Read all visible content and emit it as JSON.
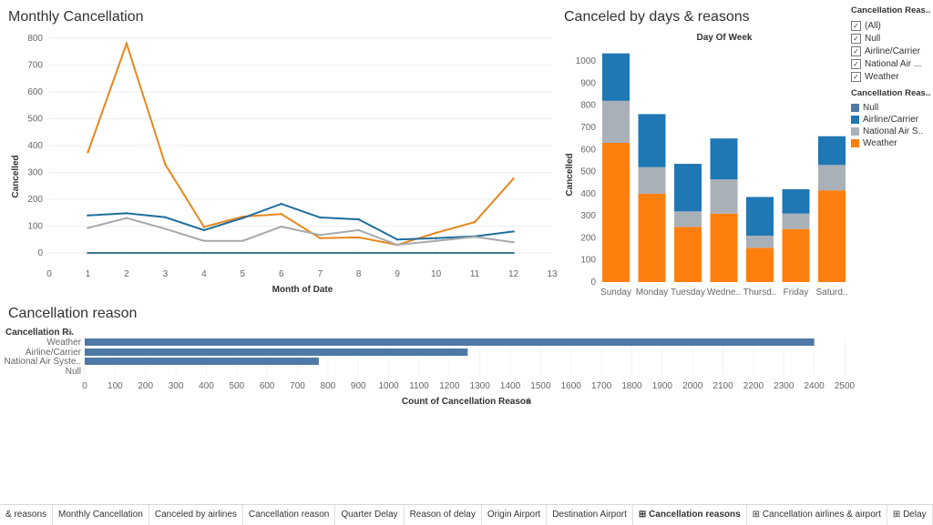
{
  "line_chart": {
    "title": "Monthly Cancellation",
    "ylabel": "Cancelled",
    "xlabel": "Month of Date",
    "y_ticks": [
      "0",
      "100",
      "200",
      "300",
      "400",
      "500",
      "600",
      "700",
      "800"
    ],
    "x_ticks": [
      "0",
      "1",
      "2",
      "3",
      "4",
      "5",
      "6",
      "7",
      "8",
      "9",
      "10",
      "11",
      "12",
      "13"
    ]
  },
  "stacked_chart": {
    "title": "Canceled by days & reasons",
    "header": "Day Of Week",
    "ylabel": "Cancelled",
    "y_ticks": [
      "0",
      "100",
      "200",
      "300",
      "400",
      "500",
      "600",
      "700",
      "800",
      "900",
      "1000"
    ],
    "days": [
      "Sunday",
      "Monday",
      "Tuesday",
      "Wedne..",
      "Thursd..",
      "Friday",
      "Saturd.."
    ]
  },
  "filter": {
    "title": "Cancellation Reas..",
    "items": [
      "(All)",
      "Null",
      "Airline/Carrier",
      "National Air ...",
      "Weather"
    ]
  },
  "legend": {
    "title": "Cancellation Reas..",
    "items": [
      {
        "label": "Null",
        "color": "#4e79a7"
      },
      {
        "label": "Airline/Carrier",
        "color": "#1f77b4"
      },
      {
        "label": "National Air S..",
        "color": "#aab0b8"
      },
      {
        "label": "Weather",
        "color": "#ff7f0e"
      }
    ]
  },
  "bar_chart": {
    "title": "Cancellation reason",
    "row_header": "Cancellation R..",
    "xlabel": "Count of Cancellation Reason",
    "x_ticks": [
      "0",
      "100",
      "200",
      "300",
      "400",
      "500",
      "600",
      "700",
      "800",
      "900",
      "1000",
      "1100",
      "1200",
      "1300",
      "1400",
      "1500",
      "1600",
      "1700",
      "1800",
      "1900",
      "2000",
      "2100",
      "2200",
      "2300",
      "2400",
      "2500"
    ]
  },
  "tabs": [
    {
      "label": "& reasons",
      "active": false
    },
    {
      "label": "Monthly Cancellation",
      "active": false
    },
    {
      "label": "Canceled by airlines",
      "active": false
    },
    {
      "label": "Cancellation reason",
      "active": false
    },
    {
      "label": "Quarter Delay",
      "active": false
    },
    {
      "label": "Reason of delay",
      "active": false
    },
    {
      "label": "Origin Airport",
      "active": false
    },
    {
      "label": "Destination Airport",
      "active": false
    },
    {
      "label": "⊞ Cancellation reasons",
      "active": true
    },
    {
      "label": "⊞ Cancellation airlines & airport",
      "active": false
    },
    {
      "label": "⊞ Delay",
      "active": false
    }
  ],
  "tab_controls": [
    "▪",
    "▦",
    "◂",
    "▸",
    "▸|"
  ],
  "chart_data": [
    {
      "type": "line",
      "title": "Monthly Cancellation",
      "xlabel": "Month of Date",
      "ylabel": "Cancelled",
      "xlim": [
        0,
        13
      ],
      "ylim": [
        0,
        800
      ],
      "x": [
        1,
        2,
        3,
        4,
        5,
        6,
        7,
        8,
        9,
        10,
        11,
        12
      ],
      "series": [
        {
          "color": "#e8871e",
          "values": [
            375,
            780,
            330,
            97,
            135,
            145,
            55,
            58,
            30,
            75,
            115,
            277
          ]
        },
        {
          "color": "#1f6e9c",
          "values": [
            140,
            148,
            133,
            85,
            130,
            183,
            132,
            125,
            50,
            55,
            62,
            80
          ]
        },
        {
          "color": "#a5a9ad",
          "values": [
            93,
            130,
            90,
            45,
            45,
            98,
            67,
            85,
            30,
            45,
            60,
            40
          ]
        },
        {
          "color": "#3e7b8f",
          "values": [
            0,
            0,
            0,
            0,
            0,
            0,
            0,
            0,
            0,
            0,
            0,
            0
          ]
        }
      ]
    },
    {
      "type": "bar",
      "stacked": true,
      "title": "Canceled by days & reasons",
      "xlabel": "Day Of Week",
      "ylabel": "Cancelled",
      "ylim": [
        0,
        1050
      ],
      "categories": [
        "Sunday",
        "Monday",
        "Tuesday",
        "Wedne..",
        "Thursd..",
        "Friday",
        "Saturd.."
      ],
      "series": [
        {
          "name": "Weather",
          "color": "#ff7f0e",
          "values": [
            630,
            400,
            250,
            310,
            155,
            240,
            415
          ]
        },
        {
          "name": "National Air S..",
          "color": "#aab0b8",
          "values": [
            190,
            120,
            70,
            155,
            55,
            70,
            115
          ]
        },
        {
          "name": "Airline/Carrier",
          "color": "#1f77b4",
          "values": [
            215,
            240,
            215,
            185,
            175,
            110,
            130
          ]
        },
        {
          "name": "Null",
          "color": "#4e79a7",
          "values": [
            0,
            0,
            0,
            0,
            0,
            0,
            0
          ]
        }
      ]
    },
    {
      "type": "bar",
      "orientation": "horizontal",
      "title": "Cancellation reason",
      "xlabel": "Count of Cancellation Reason",
      "xlim": [
        0,
        2500
      ],
      "categories": [
        "Weather",
        "Airline/Carrier",
        "National Air Syste..",
        "Null"
      ],
      "values": [
        2400,
        1260,
        770,
        0
      ],
      "color": "#4e79a7"
    }
  ]
}
